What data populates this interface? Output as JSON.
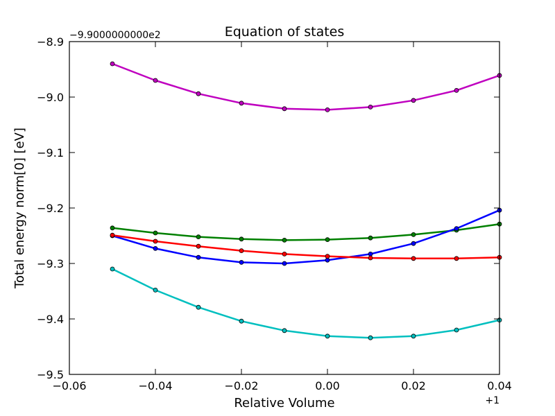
{
  "chart_data": {
    "type": "line",
    "title": "Equation of states",
    "xlabel": "Relative Volume",
    "ylabel": "Total energy norm[0] [eV]",
    "x_offset_label": "+1",
    "y_offset_label": "−9.9000000000e2",
    "xlim": [
      -0.06,
      0.04
    ],
    "ylim": [
      -9.5,
      -8.9
    ],
    "xticks": [
      -0.06,
      -0.04,
      -0.02,
      0.0,
      0.02,
      0.04
    ],
    "xtick_labels": [
      "−0.06",
      "−0.04",
      "−0.02",
      "0.00",
      "0.02",
      "0.04"
    ],
    "yticks": [
      -8.9,
      -9.0,
      -9.1,
      -9.2,
      -9.3,
      -9.4,
      -9.5
    ],
    "ytick_labels": [
      "−8.9",
      "−9.0",
      "−9.1",
      "−9.2",
      "−9.3",
      "−9.4",
      "−9.5"
    ],
    "grid": false,
    "legend": "none",
    "x": [
      -0.05,
      -0.04,
      -0.03,
      -0.02,
      -0.01,
      0.0,
      0.01,
      0.02,
      0.03,
      0.04
    ],
    "series": [
      {
        "color": "#bf00bf",
        "values": [
          -8.94,
          -8.97,
          -8.994,
          -9.011,
          -9.021,
          -9.023,
          -9.018,
          -9.006,
          -8.988,
          -8.961
        ]
      },
      {
        "color": "#008000",
        "values": [
          -9.236,
          -9.245,
          -9.252,
          -9.256,
          -9.258,
          -9.257,
          -9.254,
          -9.248,
          -9.24,
          -9.229
        ]
      },
      {
        "color": "#0000ff",
        "values": [
          -9.25,
          -9.273,
          -9.289,
          -9.298,
          -9.3,
          -9.294,
          -9.283,
          -9.264,
          -9.237,
          -9.204
        ]
      },
      {
        "color": "#ff0000",
        "values": [
          -9.249,
          -9.26,
          -9.269,
          -9.277,
          -9.283,
          -9.287,
          -9.29,
          -9.291,
          -9.291,
          -9.289
        ]
      },
      {
        "color": "#00bfbf",
        "values": [
          -9.31,
          -9.348,
          -9.379,
          -9.404,
          -9.421,
          -9.431,
          -9.434,
          -9.431,
          -9.42,
          -9.402
        ]
      }
    ]
  }
}
